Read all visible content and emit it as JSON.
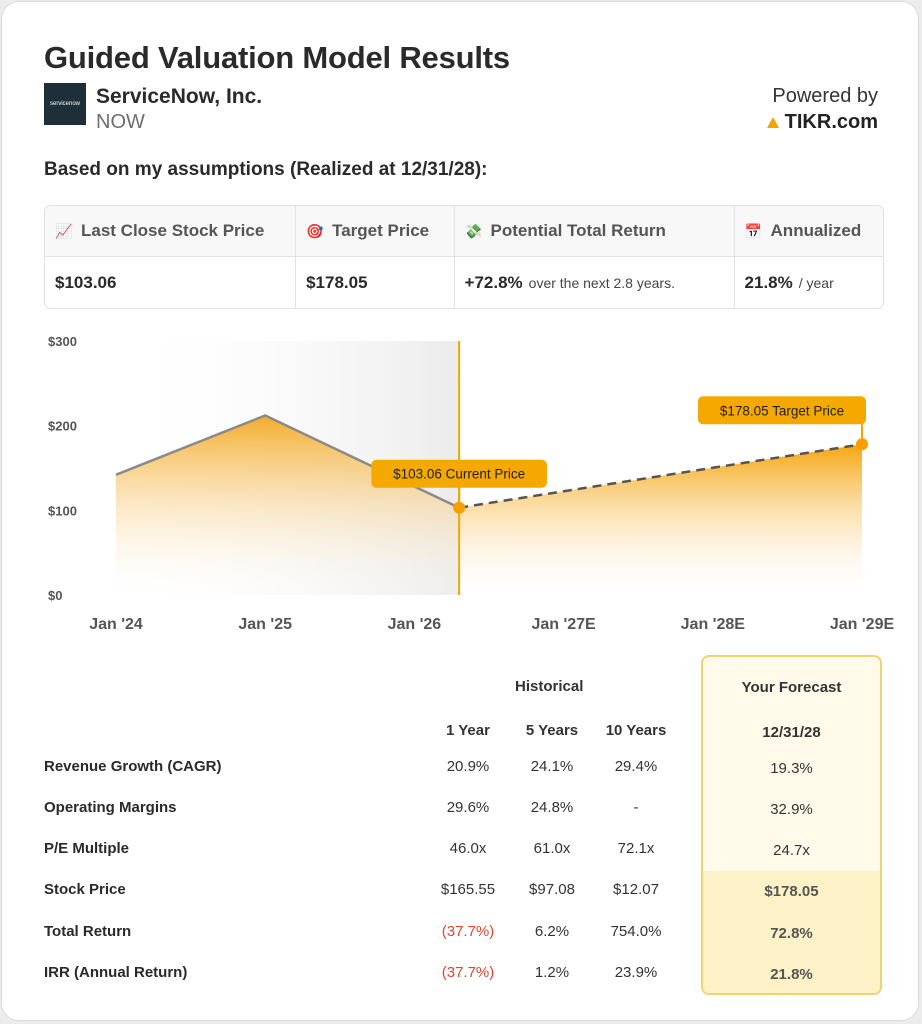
{
  "header": {
    "title": "Guided Valuation Model Results",
    "logo_text": "servicenow",
    "company": "ServiceNow, Inc.",
    "ticker": "NOW",
    "powered_by": "Powered by",
    "brand": "TIKR.com"
  },
  "subtitle": "Based on my assumptions (Realized at 12/31/28):",
  "metrics": [
    {
      "icon": "📈",
      "label": "Last Close Stock Price",
      "value": "$103.06",
      "suffix": ""
    },
    {
      "icon": "🎯",
      "label": "Target Price",
      "value": "$178.05",
      "suffix": ""
    },
    {
      "icon": "💸",
      "label": "Potential Total Return",
      "value": "+72.8%",
      "suffix": "over the next 2.8 years."
    },
    {
      "icon": "📅",
      "label": "Annualized",
      "value": "21.8%",
      "suffix": "/ year"
    }
  ],
  "chart_data": {
    "type": "area",
    "ylim": [
      0,
      300
    ],
    "yticks": [
      "$300",
      "$200",
      "$100",
      "$0"
    ],
    "xticks": [
      "Jan '24",
      "Jan '25",
      "Jan '26",
      "Jan '27E",
      "Jan '28E",
      "Jan '29E"
    ],
    "historical": {
      "x": [
        0.0,
        1.0,
        2.3
      ],
      "y": [
        142,
        212,
        103.06
      ]
    },
    "forecast": {
      "x": [
        2.3,
        5.0
      ],
      "y": [
        103.06,
        178.05
      ]
    },
    "current_label": "$103.06 Current Price",
    "target_label": "$178.05 Target Price",
    "colors": {
      "accent": "#f0a500",
      "line": "#8a8a8a",
      "dash": "#555555"
    }
  },
  "table": {
    "historical_label": "Historical",
    "forecast_label": "Your Forecast",
    "columns": [
      "1 Year",
      "5 Years",
      "10 Years"
    ],
    "forecast_date": "12/31/28",
    "rows": [
      {
        "label": "Revenue Growth (CAGR)",
        "values": [
          "20.9%",
          "24.1%",
          "29.4%"
        ],
        "forecast": "19.3%"
      },
      {
        "label": "Operating Margins",
        "values": [
          "29.6%",
          "24.8%",
          "-"
        ],
        "forecast": "32.9%"
      },
      {
        "label": "P/E Multiple",
        "values": [
          "46.0x",
          "61.0x",
          "72.1x"
        ],
        "forecast": "24.7x"
      },
      {
        "label": "Stock Price",
        "values": [
          "$165.55",
          "$97.08",
          "$12.07"
        ],
        "forecast": "$178.05"
      },
      {
        "label": "Total Return",
        "values": [
          "(37.7%)",
          "6.2%",
          "754.0%"
        ],
        "forecast": "72.8%"
      },
      {
        "label": "IRR (Annual Return)",
        "values": [
          "(37.7%)",
          "1.2%",
          "23.9%"
        ],
        "forecast": "21.8%"
      }
    ]
  }
}
